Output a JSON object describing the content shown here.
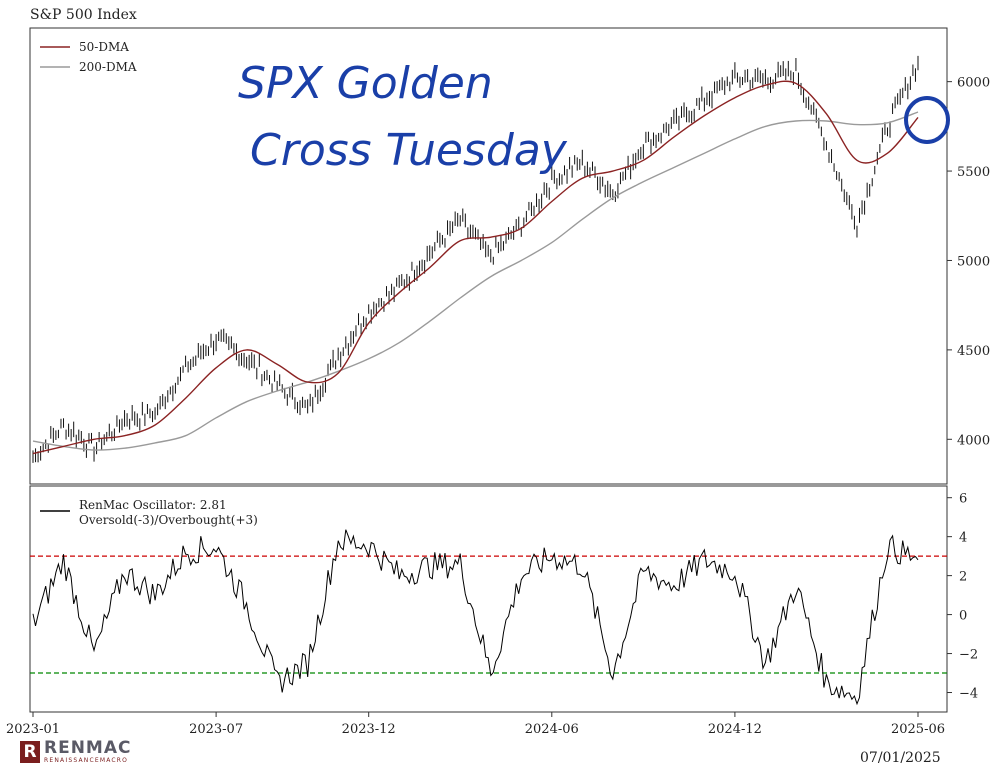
{
  "title": "S&P 500 Index",
  "date_stamp": "07/01/2025",
  "logo": {
    "name": "RENMAC",
    "tagline": "RENAISSANCEMACRO"
  },
  "annotation": {
    "text_line1": "SPX Golden",
    "text_line2": "Cross Tuesday",
    "color": "#1a3fa8"
  },
  "colors": {
    "price": "#111111",
    "dma50": "#8b2323",
    "dma200": "#9a9a9a",
    "osc": "#000000",
    "overbought": "#cc0000",
    "oversold": "#008800"
  },
  "chart_data": [
    {
      "type": "line",
      "panel": "price",
      "title": "S&P 500 Index",
      "ylim": [
        3750,
        6300
      ],
      "yticks": [
        4000,
        4500,
        5000,
        5500,
        6000
      ],
      "ytick_labels": [
        "4000",
        "4500",
        "5000",
        "5500",
        "6000"
      ],
      "legend": [
        "50-DMA",
        "200-DMA"
      ],
      "legend_position": "top-left",
      "x": [
        "2023-01",
        "2023-02",
        "2023-03",
        "2023-04",
        "2023-05",
        "2023-06",
        "2023-07",
        "2023-08",
        "2023-09",
        "2023-10",
        "2023-11",
        "2023-12",
        "2024-01",
        "2024-02",
        "2024-03",
        "2024-04",
        "2024-05",
        "2024-06",
        "2024-07",
        "2024-08",
        "2024-09",
        "2024-10",
        "2024-11",
        "2024-12",
        "2025-01",
        "2025-02",
        "2025-03",
        "2025-04",
        "2025-05",
        "2025-06"
      ],
      "series": [
        {
          "name": "S&P 500",
          "values": [
            3900,
            4080,
            3950,
            4110,
            4150,
            4400,
            4560,
            4450,
            4300,
            4170,
            4470,
            4720,
            4850,
            5050,
            5220,
            5020,
            5200,
            5450,
            5550,
            5380,
            5650,
            5760,
            5900,
            6020,
            6010,
            6050,
            5650,
            5200,
            5750,
            6100
          ]
        },
        {
          "name": "50-DMA",
          "values": [
            3920,
            3960,
            4000,
            4020,
            4080,
            4230,
            4400,
            4500,
            4420,
            4320,
            4370,
            4650,
            4820,
            4960,
            5110,
            5130,
            5180,
            5330,
            5460,
            5500,
            5560,
            5690,
            5810,
            5910,
            5980,
            5990,
            5820,
            5560,
            5600,
            5800
          ]
        },
        {
          "name": "200-DMA",
          "values": [
            3990,
            3960,
            3940,
            3950,
            3980,
            4020,
            4120,
            4210,
            4270,
            4320,
            4380,
            4450,
            4540,
            4660,
            4790,
            4910,
            5000,
            5100,
            5230,
            5350,
            5440,
            5520,
            5600,
            5680,
            5750,
            5780,
            5780,
            5760,
            5770,
            5830
          ]
        }
      ]
    },
    {
      "type": "line",
      "panel": "oscillator",
      "legend": [
        "RenMac Oscillator: 2.81",
        "Oversold(-3)/Overbought(+3)"
      ],
      "legend_position": "top-left",
      "ylim": [
        -5,
        6.6
      ],
      "yticks": [
        -4,
        -2,
        0,
        2,
        4,
        6
      ],
      "ytick_labels": [
        "−4",
        "−2",
        "0",
        "2",
        "4",
        "6"
      ],
      "reference_lines": [
        3,
        -3
      ],
      "x_tick_labels": [
        "2023-01",
        "2023-07",
        "2023-12",
        "2024-06",
        "2024-12",
        "2025-06"
      ],
      "x_tick_months": [
        0,
        6,
        11,
        17,
        23,
        29
      ],
      "x": [
        "2023-01",
        "2023-02",
        "2023-03",
        "2023-04",
        "2023-05",
        "2023-06",
        "2023-07",
        "2023-08",
        "2023-09",
        "2023-10",
        "2023-11",
        "2023-12",
        "2024-01",
        "2024-02",
        "2024-03",
        "2024-04",
        "2024-05",
        "2024-06",
        "2024-07",
        "2024-08",
        "2024-09",
        "2024-10",
        "2024-11",
        "2024-12",
        "2025-01",
        "2025-02",
        "2025-03",
        "2025-04",
        "2025-05",
        "2025-06"
      ],
      "series": [
        {
          "name": "RenMac Oscillator",
          "values": [
            -0.5,
            2.8,
            -2.0,
            2.2,
            1.0,
            3.2,
            3.5,
            0.5,
            -3.5,
            -2.5,
            3.8,
            3.6,
            2.0,
            2.5,
            2.6,
            -3.0,
            2.0,
            3.0,
            2.5,
            -3.0,
            2.2,
            1.5,
            2.8,
            2.2,
            -2.5,
            1.5,
            -3.5,
            -4.2,
            3.5,
            2.81
          ]
        }
      ]
    }
  ]
}
